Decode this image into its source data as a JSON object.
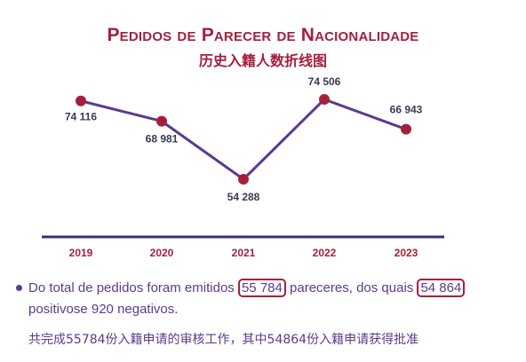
{
  "chart_data": {
    "type": "line",
    "title": "Pedidos de Parecer de Nacionalidade",
    "subtitle": "历史入籍人数折线图",
    "categories": [
      "2019",
      "2020",
      "2021",
      "2022",
      "2023"
    ],
    "series": [
      {
        "values": [
          74116,
          68981,
          54288,
          74506,
          66943
        ]
      }
    ],
    "data_labels": [
      "74 116",
      "68 981",
      "54 288",
      "74 506",
      "66 943"
    ],
    "grid": false,
    "colors": {
      "line": "#5b3b8c",
      "marker": "#a51f3d",
      "axis_labels": "#a51f3d",
      "data_labels": "#3a3a55"
    }
  },
  "notes": {
    "line1_a": "Do total de pedidos foram emitidos",
    "line1_box1": "55 784",
    "line1_b": "pareceres, dos quais",
    "line1_box2": "54 864",
    "line2": "positivose 920 negativos.",
    "chinese": "共完成55784份入籍申请的审核工作，其中54864份入籍申请获得批准"
  }
}
